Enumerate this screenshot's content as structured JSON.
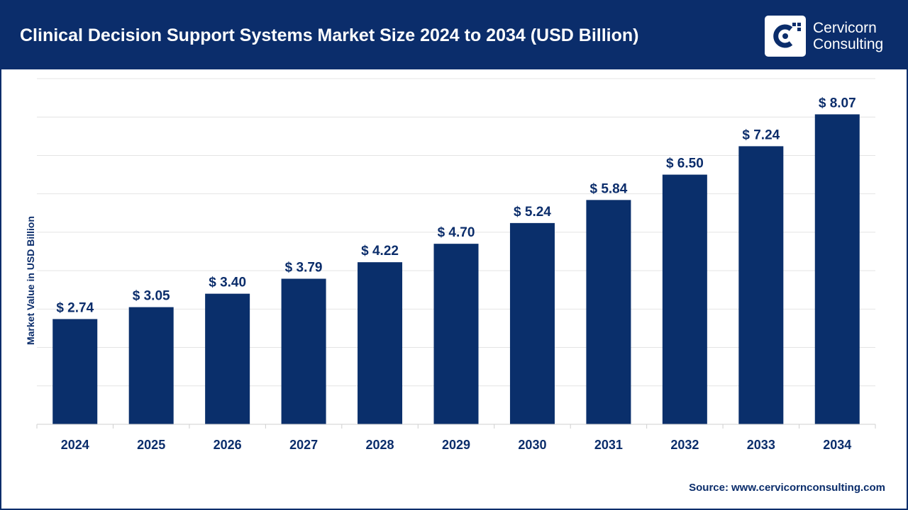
{
  "header": {
    "title": "Clinical Decision Support Systems Market Size 2024 to 2034 (USD Billion)",
    "brand_line1": "Cervicorn",
    "brand_line2": "Consulting",
    "logo_icon": "cervicorn-logo"
  },
  "colors": {
    "header_bg": "#0b2d6b",
    "bar": "#0a2f6b",
    "text": "#0b2d6b"
  },
  "chart_data": {
    "type": "bar",
    "title": "Clinical Decision Support Systems Market Size 2024 to 2034 (USD Billion)",
    "xlabel": "",
    "ylabel": "Market Value in USD Billion",
    "categories": [
      "2024",
      "2025",
      "2026",
      "2027",
      "2028",
      "2029",
      "2030",
      "2031",
      "2032",
      "2033",
      "2034"
    ],
    "values": [
      2.74,
      3.05,
      3.4,
      3.79,
      4.22,
      4.7,
      5.24,
      5.84,
      6.5,
      7.24,
      8.07
    ],
    "value_labels": [
      "$ 2.74",
      "$ 3.05",
      "$ 3.40",
      "$ 3.79",
      "$ 4.22",
      "$ 4.70",
      "$ 5.24",
      "$ 5.84",
      "$ 6.50",
      "$ 7.24",
      "$ 8.07"
    ],
    "ylim": [
      0,
      9
    ],
    "grid": true,
    "legend": "none"
  },
  "footer": {
    "source_label": "Source:",
    "source_url": "www.cervicornconsulting.com"
  }
}
